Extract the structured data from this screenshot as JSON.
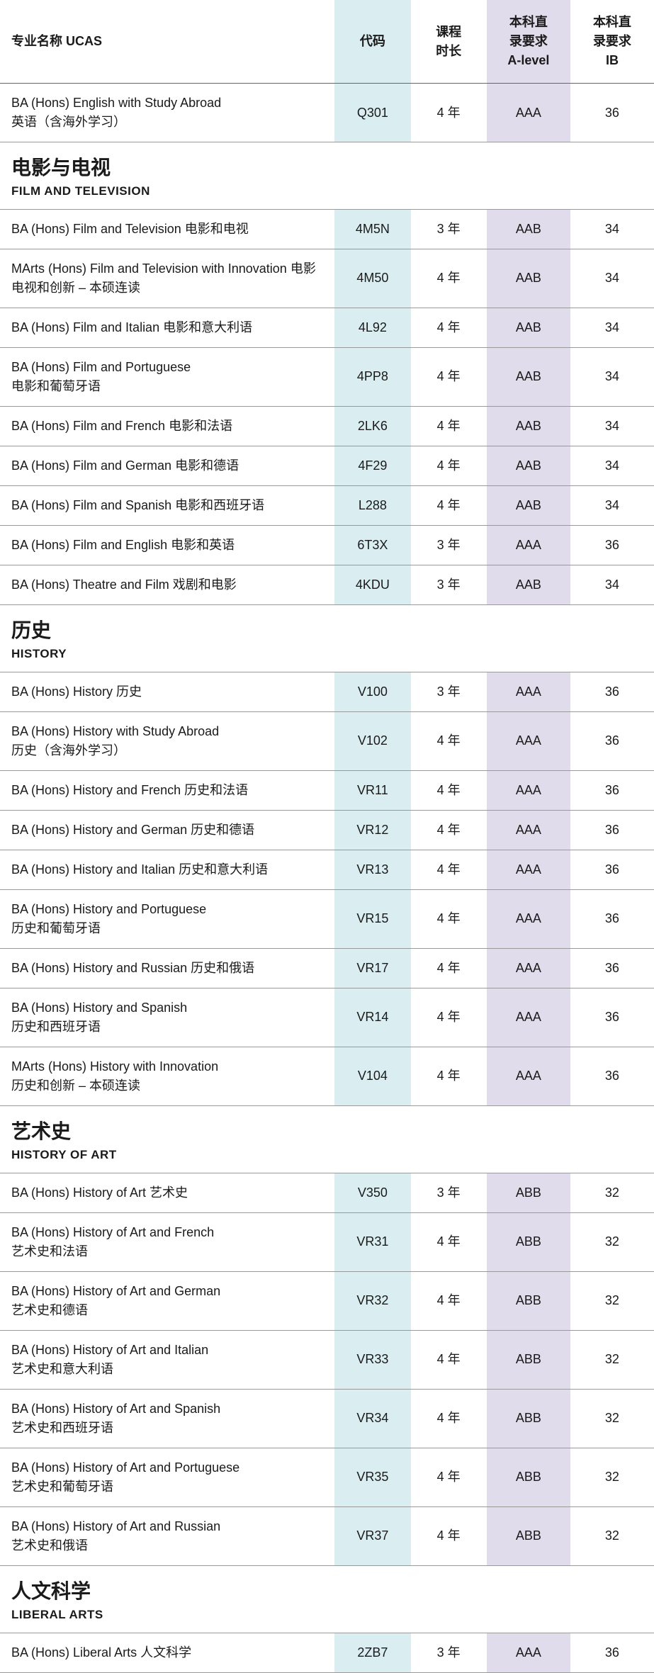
{
  "headers": {
    "name": "专业名称 UCAS",
    "code": "代码",
    "duration": "课程\n时长",
    "alevel": "本科直\n录要求\nA-level",
    "ib": "本科直\n录要求\nIB"
  },
  "colors": {
    "code_bg": "#daeef2",
    "alevel_bg": "#e0dceb",
    "border": "#999999",
    "text": "#1a1a1a",
    "background": "#ffffff"
  },
  "sections": [
    {
      "title_cn": "",
      "title_en": "",
      "rows": [
        {
          "name": "BA (Hons) English with Study Abroad\n英语（含海外学习）",
          "code": "Q301",
          "duration": "4 年",
          "alevel": "AAA",
          "ib": "36"
        }
      ]
    },
    {
      "title_cn": "电影与电视",
      "title_en": "FILM AND TELEVISION",
      "rows": [
        {
          "name": "BA (Hons) Film and Television 电影和电视",
          "code": "4M5N",
          "duration": "3 年",
          "alevel": "AAB",
          "ib": "34"
        },
        {
          "name": "MArts (Hons) Film and Television with Innovation 电影电视和创新 – 本硕连读",
          "code": "4M50",
          "duration": "4 年",
          "alevel": "AAB",
          "ib": "34"
        },
        {
          "name": "BA (Hons) Film and Italian 电影和意大利语",
          "code": "4L92",
          "duration": "4 年",
          "alevel": "AAB",
          "ib": "34"
        },
        {
          "name": "BA (Hons) Film and Portuguese\n电影和葡萄牙语",
          "code": "4PP8",
          "duration": "4 年",
          "alevel": "AAB",
          "ib": "34"
        },
        {
          "name": "BA (Hons) Film and French 电影和法语",
          "code": "2LK6",
          "duration": "4 年",
          "alevel": "AAB",
          "ib": "34"
        },
        {
          "name": "BA (Hons) Film and German 电影和德语",
          "code": "4F29",
          "duration": "4 年",
          "alevel": "AAB",
          "ib": "34"
        },
        {
          "name": "BA (Hons) Film and Spanish 电影和西班牙语",
          "code": "L288",
          "duration": "4 年",
          "alevel": "AAB",
          "ib": "34"
        },
        {
          "name": "BA (Hons) Film and English 电影和英语",
          "code": "6T3X",
          "duration": "3 年",
          "alevel": "AAA",
          "ib": "36"
        },
        {
          "name": "BA (Hons) Theatre and Film 戏剧和电影",
          "code": "4KDU",
          "duration": "3 年",
          "alevel": "AAB",
          "ib": "34"
        }
      ]
    },
    {
      "title_cn": "历史",
      "title_en": "HISTORY",
      "rows": [
        {
          "name": "BA (Hons) History 历史",
          "code": "V100",
          "duration": "3 年",
          "alevel": "AAA",
          "ib": "36"
        },
        {
          "name": "BA (Hons) History with Study Abroad\n历史（含海外学习）",
          "code": "V102",
          "duration": "4 年",
          "alevel": "AAA",
          "ib": "36"
        },
        {
          "name": "BA (Hons) History and French 历史和法语",
          "code": "VR11",
          "duration": "4 年",
          "alevel": "AAA",
          "ib": "36"
        },
        {
          "name": "BA (Hons) History and German 历史和德语",
          "code": "VR12",
          "duration": "4 年",
          "alevel": "AAA",
          "ib": "36"
        },
        {
          "name": "BA (Hons) History and Italian 历史和意大利语",
          "code": "VR13",
          "duration": "4 年",
          "alevel": "AAA",
          "ib": "36"
        },
        {
          "name": "BA (Hons) History and Portuguese\n历史和葡萄牙语",
          "code": "VR15",
          "duration": "4 年",
          "alevel": "AAA",
          "ib": "36"
        },
        {
          "name": "BA (Hons) History and Russian 历史和俄语",
          "code": "VR17",
          "duration": "4 年",
          "alevel": "AAA",
          "ib": "36"
        },
        {
          "name": "BA (Hons) History and Spanish\n历史和西班牙语",
          "code": "VR14",
          "duration": "4 年",
          "alevel": "AAA",
          "ib": "36"
        },
        {
          "name": "MArts (Hons) History with Innovation\n历史和创新 – 本硕连读",
          "code": "V104",
          "duration": "4 年",
          "alevel": "AAA",
          "ib": "36"
        }
      ]
    },
    {
      "title_cn": "艺术史",
      "title_en": "HISTORY OF ART",
      "rows": [
        {
          "name": "BA (Hons) History of Art 艺术史",
          "code": "V350",
          "duration": "3 年",
          "alevel": "ABB",
          "ib": "32"
        },
        {
          "name": "BA (Hons) History of Art and French\n艺术史和法语",
          "code": "VR31",
          "duration": "4 年",
          "alevel": "ABB",
          "ib": "32"
        },
        {
          "name": "BA (Hons) History of Art and German\n艺术史和德语",
          "code": "VR32",
          "duration": "4 年",
          "alevel": "ABB",
          "ib": "32"
        },
        {
          "name": "BA (Hons) History of Art and Italian\n艺术史和意大利语",
          "code": "VR33",
          "duration": "4 年",
          "alevel": "ABB",
          "ib": "32"
        },
        {
          "name": "BA (Hons) History of Art and Spanish\n艺术史和西班牙语",
          "code": "VR34",
          "duration": "4 年",
          "alevel": "ABB",
          "ib": "32"
        },
        {
          "name": "BA (Hons) History of Art and Portuguese\n艺术史和葡萄牙语",
          "code": "VR35",
          "duration": "4 年",
          "alevel": "ABB",
          "ib": "32"
        },
        {
          "name": "BA (Hons) History of Art and Russian\n艺术史和俄语",
          "code": "VR37",
          "duration": "4 年",
          "alevel": "ABB",
          "ib": "32"
        }
      ]
    },
    {
      "title_cn": "人文科学",
      "title_en": "LIBERAL ARTS",
      "rows": [
        {
          "name": "BA (Hons) Liberal Arts 人文科学",
          "code": "2ZB7",
          "duration": "3 年",
          "alevel": "AAA",
          "ib": "36"
        }
      ]
    }
  ]
}
